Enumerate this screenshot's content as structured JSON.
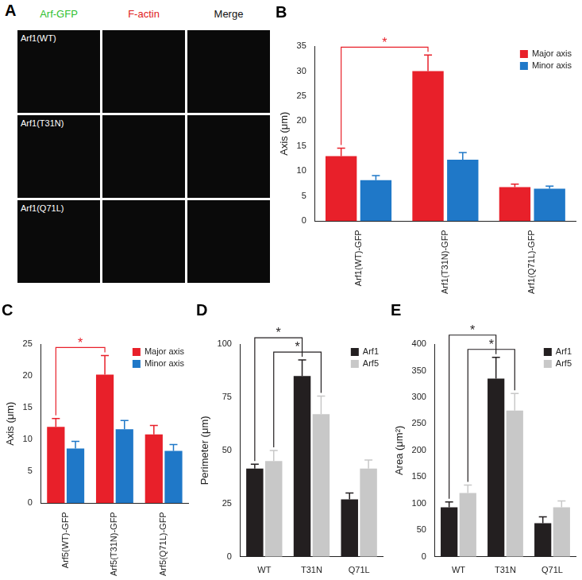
{
  "image_panel": {
    "title": "A",
    "column_titles": [
      "Arf-GFP",
      "F-actin",
      "Merge"
    ],
    "row_labels": [
      "Arf1(WT)",
      "Arf1(T31N)",
      "Arf1(Q71L)"
    ]
  },
  "chart_data": [
    {
      "type": "bar",
      "title": "B",
      "y_label": "Axis (μm)",
      "categories": [
        "Arf1(WT)-GFP",
        "Arf1(T31N)-GFP",
        "Arf1(Q71L)-GFP"
      ],
      "series": [
        {
          "name": "Major axis",
          "color": "#e8202a",
          "values": [
            13,
            30,
            6.8
          ],
          "errors": [
            1.6,
            3.2,
            0.6
          ]
        },
        {
          "name": "Minor axis",
          "color": "#1f78c8",
          "values": [
            8.2,
            12.3,
            6.5
          ],
          "errors": [
            0.9,
            1.4,
            0.5
          ]
        }
      ],
      "ylim": [
        0,
        35
      ],
      "yticks": [
        0,
        5,
        10,
        15,
        20,
        25,
        30,
        35
      ],
      "grid": false,
      "legend": "upper right",
      "significance": [
        {
          "series": 0,
          "from": 0,
          "to": 1,
          "label": "*",
          "color": "#e8202a"
        }
      ]
    },
    {
      "type": "bar",
      "title": "C",
      "y_label": "Axis (μm)",
      "categories": [
        "Arf5(WT)-GFP",
        "Arf5(T31N)-GFP",
        "Arf5(Q71L)-GFP"
      ],
      "series": [
        {
          "name": "Major axis",
          "color": "#e8202a",
          "values": [
            12,
            20.2,
            10.8
          ],
          "errors": [
            1.3,
            3.0,
            1.4
          ]
        },
        {
          "name": "Minor axis",
          "color": "#1f78c8",
          "values": [
            8.6,
            11.6,
            8.2
          ],
          "errors": [
            1.1,
            1.4,
            1.0
          ]
        }
      ],
      "ylim": [
        0,
        25
      ],
      "yticks": [
        0,
        5,
        10,
        15,
        20,
        25
      ],
      "grid": false,
      "legend": "upper right",
      "significance": [
        {
          "series": 0,
          "from": 0,
          "to": 1,
          "label": "*",
          "color": "#e8202a"
        }
      ]
    },
    {
      "type": "bar",
      "title": "D",
      "y_label": "Perimeter (μm)",
      "categories": [
        "WT",
        "T31N",
        "Q71L"
      ],
      "series": [
        {
          "name": "Arf1",
          "color": "#231f20",
          "values": [
            41.5,
            85,
            27
          ],
          "errors": [
            2,
            7.5,
            3
          ]
        },
        {
          "name": "Arf5",
          "color": "#c8c8c8",
          "values": [
            45,
            67,
            41.5
          ],
          "errors": [
            5,
            8.5,
            4
          ]
        }
      ],
      "ylim": [
        0,
        100
      ],
      "yticks": [
        0,
        25,
        50,
        75,
        100
      ],
      "grid": false,
      "legend": "upper right",
      "significance": [
        {
          "series": 0,
          "from": 0,
          "to": 1,
          "label": "*",
          "color": "#231f20"
        },
        {
          "series": 1,
          "from": 0,
          "to": 1,
          "label": "*",
          "color": "#231f20"
        }
      ]
    },
    {
      "type": "bar",
      "title": "E",
      "y_label": "Area (μm²)",
      "categories": [
        "WT",
        "T31N",
        "Q71L"
      ],
      "series": [
        {
          "name": "Arf1",
          "color": "#231f20",
          "values": [
            93,
            335,
            63
          ],
          "errors": [
            10,
            40,
            12
          ]
        },
        {
          "name": "Arf5",
          "color": "#c8c8c8",
          "values": [
            120,
            275,
            93
          ],
          "errors": [
            15,
            32,
            12
          ]
        }
      ],
      "ylim": [
        0,
        400
      ],
      "yticks": [
        0,
        50,
        100,
        150,
        200,
        250,
        300,
        350,
        400
      ],
      "grid": false,
      "legend": "upper right",
      "significance": [
        {
          "series": 0,
          "from": 0,
          "to": 1,
          "label": "*",
          "color": "#231f20"
        },
        {
          "series": 1,
          "from": 0,
          "to": 1,
          "label": "*",
          "color": "#231f20"
        }
      ]
    }
  ]
}
